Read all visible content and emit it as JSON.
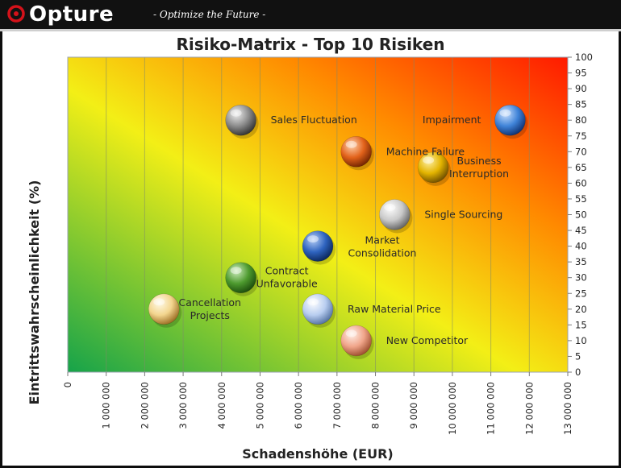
{
  "header": {
    "brand": "Opture",
    "tagline": "- Optimize the Future -"
  },
  "colors": {
    "header_bg": "#111111",
    "logo_red": "#d4121a",
    "gradient_green": "#16a34a",
    "gradient_yellow": "#f3ef16",
    "gradient_orange": "#ff8a00",
    "gradient_red": "#ff1a00"
  },
  "chart_data": {
    "type": "scatter",
    "title": "Risiko-Matrix - Top 10 Risiken",
    "xlabel": "Schadenshöhe (EUR)",
    "ylabel": "Eintrittswahrscheinlichkeit (%)",
    "xlim": [
      0,
      13000000
    ],
    "ylim": [
      0,
      100
    ],
    "xticks": [
      0,
      1000000,
      2000000,
      3000000,
      4000000,
      5000000,
      6000000,
      7000000,
      8000000,
      9000000,
      10000000,
      11000000,
      12000000,
      13000000
    ],
    "xtick_labels": [
      "0",
      "1 000 000",
      "2 000 000",
      "3 000 000",
      "4 000 000",
      "5 000 000",
      "6 000 000",
      "7 000 000",
      "8 000 000",
      "9 000 000",
      "10 000 000",
      "11 000 000",
      "12 000 000",
      "13 000 000"
    ],
    "yticks": [
      0,
      5,
      10,
      15,
      20,
      25,
      30,
      35,
      40,
      45,
      50,
      55,
      60,
      65,
      70,
      75,
      80,
      85,
      90,
      95,
      100
    ],
    "y_axis_position": "right",
    "grid": "vertical",
    "background": "diagonal gradient green to yellow to orange to red",
    "points": [
      {
        "label": "Sales Fluctuation",
        "label_lines": [
          "Sales Fluctuation"
        ],
        "label_side": "right",
        "x": 4500000,
        "y": 80,
        "color": "gray"
      },
      {
        "label": "Impairment",
        "label_lines": [
          "Impairment"
        ],
        "label_side": "left",
        "x": 11500000,
        "y": 80,
        "color": "blue"
      },
      {
        "label": "Machine Failure",
        "label_lines": [
          "Machine Failure"
        ],
        "label_side": "right",
        "x": 7500000,
        "y": 70,
        "color": "orange"
      },
      {
        "label": "Business Interruption",
        "label_lines": [
          "Business",
          "Interruption"
        ],
        "label_side": "right",
        "x": 9500000,
        "y": 65,
        "color": "gold"
      },
      {
        "label": "Single Sourcing",
        "label_lines": [
          "Single Sourcing"
        ],
        "label_side": "right",
        "x": 8500000,
        "y": 50,
        "color": "silver"
      },
      {
        "label": "Market Consolidation",
        "label_lines": [
          "Market",
          "Consolidation"
        ],
        "label_side": "below-right",
        "x": 6500000,
        "y": 40,
        "color": "navy"
      },
      {
        "label": "Contract Unfavorable",
        "label_lines": [
          "Contract",
          "Unfavorable"
        ],
        "label_side": "right",
        "x": 4500000,
        "y": 30,
        "color": "green"
      },
      {
        "label": "Cancellation Projects",
        "label_lines": [
          "Cancellation",
          "Projects"
        ],
        "label_side": "right",
        "x": 2500000,
        "y": 20,
        "color": "cream"
      },
      {
        "label": "Raw Material Price",
        "label_lines": [
          "Raw Material Price"
        ],
        "label_side": "right",
        "x": 6500000,
        "y": 20,
        "color": "lightblue"
      },
      {
        "label": "New Competitor",
        "label_lines": [
          "New Competitor"
        ],
        "label_side": "right",
        "x": 7500000,
        "y": 10,
        "color": "salmon"
      }
    ]
  }
}
